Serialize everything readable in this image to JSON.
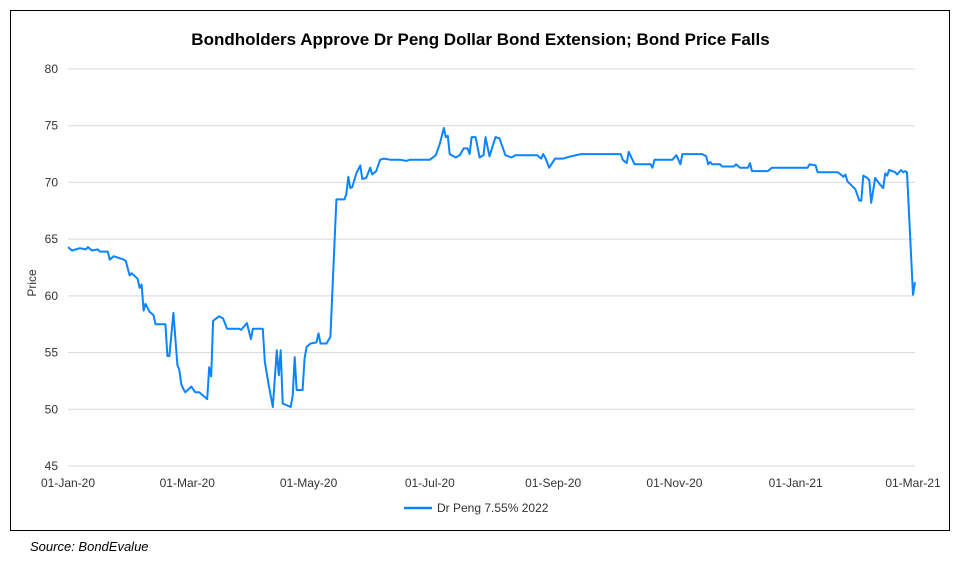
{
  "chart_data": {
    "type": "line",
    "title": "Bondholders Approve Dr Peng Dollar Bond Extension; Bond Price Falls",
    "xlabel": "",
    "ylabel": "Price",
    "x_unit": "days",
    "xlim": [
      0,
      426
    ],
    "ylim": [
      45,
      80
    ],
    "yticks": [
      45,
      50,
      55,
      60,
      65,
      70,
      75,
      80
    ],
    "xticks": [
      {
        "day": 0,
        "label": "01-Jan-20"
      },
      {
        "day": 60,
        "label": "01-Mar-20"
      },
      {
        "day": 121,
        "label": "01-May-20"
      },
      {
        "day": 182,
        "label": "01-Jul-20"
      },
      {
        "day": 244,
        "label": "01-Sep-20"
      },
      {
        "day": 305,
        "label": "01-Nov-20"
      },
      {
        "day": 366,
        "label": "01-Jan-21"
      },
      {
        "day": 425,
        "label": "01-Mar-21"
      }
    ],
    "grid": true,
    "legend": "bottom",
    "series": [
      {
        "name": "Dr Peng 7.55% 2022",
        "color": "#0a84ff",
        "points": [
          [
            0,
            64.3
          ],
          [
            2,
            64.0
          ],
          [
            6,
            64.2
          ],
          [
            9,
            64.1
          ],
          [
            10,
            64.3
          ],
          [
            12,
            64.0
          ],
          [
            15,
            64.1
          ],
          [
            16,
            63.9
          ],
          [
            20,
            63.9
          ],
          [
            21,
            63.2
          ],
          [
            23,
            63.5
          ],
          [
            28,
            63.2
          ],
          [
            29,
            63.1
          ],
          [
            31,
            61.8
          ],
          [
            32,
            62.0
          ],
          [
            35,
            61.5
          ],
          [
            36,
            60.7
          ],
          [
            37,
            61.0
          ],
          [
            38,
            58.7
          ],
          [
            39,
            59.3
          ],
          [
            41,
            58.6
          ],
          [
            43,
            58.3
          ],
          [
            44,
            57.5
          ],
          [
            49,
            57.5
          ],
          [
            50,
            54.7
          ],
          [
            51,
            54.7
          ],
          [
            53,
            58.5
          ],
          [
            55,
            53.9
          ],
          [
            56,
            53.5
          ],
          [
            57,
            52.2
          ],
          [
            58,
            51.8
          ],
          [
            59,
            51.5
          ],
          [
            62,
            52.0
          ],
          [
            64,
            51.5
          ],
          [
            66,
            51.5
          ],
          [
            70,
            50.9
          ],
          [
            71,
            53.7
          ],
          [
            72,
            52.9
          ],
          [
            73,
            57.8
          ],
          [
            76,
            58.2
          ],
          [
            78,
            58.0
          ],
          [
            80,
            57.1
          ],
          [
            86,
            57.1
          ],
          [
            87,
            57.0
          ],
          [
            90,
            57.6
          ],
          [
            92,
            56.2
          ],
          [
            93,
            57.1
          ],
          [
            98,
            57.1
          ],
          [
            99,
            54.2
          ],
          [
            101,
            52.1
          ],
          [
            103,
            50.2
          ],
          [
            105,
            55.2
          ],
          [
            106,
            53.0
          ],
          [
            107,
            55.2
          ],
          [
            108,
            50.5
          ],
          [
            112,
            50.2
          ],
          [
            113,
            51.2
          ],
          [
            114,
            54.6
          ],
          [
            115,
            51.7
          ],
          [
            118,
            51.7
          ],
          [
            119,
            54.5
          ],
          [
            120,
            55.5
          ],
          [
            122,
            55.8
          ],
          [
            125,
            55.9
          ],
          [
            126,
            56.7
          ],
          [
            127,
            55.8
          ],
          [
            130,
            55.8
          ],
          [
            132,
            56.4
          ],
          [
            135,
            68.5
          ],
          [
            139,
            68.5
          ],
          [
            140,
            69.0
          ],
          [
            141,
            70.5
          ],
          [
            142,
            69.5
          ],
          [
            143,
            69.6
          ],
          [
            145,
            70.8
          ],
          [
            147,
            71.5
          ],
          [
            148,
            70.3
          ],
          [
            150,
            70.4
          ],
          [
            152,
            71.3
          ],
          [
            153,
            70.7
          ],
          [
            155,
            71.0
          ],
          [
            157,
            72.0
          ],
          [
            159,
            72.1
          ],
          [
            162,
            72.0
          ],
          [
            167,
            72.0
          ],
          [
            170,
            71.9
          ],
          [
            172,
            72.0
          ],
          [
            177,
            72.0
          ],
          [
            182,
            72.0
          ],
          [
            185,
            72.4
          ],
          [
            187,
            73.4
          ],
          [
            189,
            74.8
          ],
          [
            190,
            74.0
          ],
          [
            191,
            74.1
          ],
          [
            192,
            72.5
          ],
          [
            195,
            72.2
          ],
          [
            197,
            72.4
          ],
          [
            199,
            73.0
          ],
          [
            201,
            73.0
          ],
          [
            202,
            72.5
          ],
          [
            203,
            74.0
          ],
          [
            205,
            74.0
          ],
          [
            207,
            72.2
          ],
          [
            209,
            72.4
          ],
          [
            210,
            74.0
          ],
          [
            212,
            72.3
          ],
          [
            215,
            74.0
          ],
          [
            217,
            73.9
          ],
          [
            220,
            72.4
          ],
          [
            223,
            72.2
          ],
          [
            225,
            72.4
          ],
          [
            236,
            72.4
          ],
          [
            238,
            72.1
          ],
          [
            239,
            72.5
          ],
          [
            240,
            72.2
          ],
          [
            242,
            71.3
          ],
          [
            245,
            72.1
          ],
          [
            249,
            72.1
          ],
          [
            253,
            72.3
          ],
          [
            258,
            72.5
          ],
          [
            278,
            72.5
          ],
          [
            279,
            72.0
          ],
          [
            281,
            71.7
          ],
          [
            282,
            72.7
          ],
          [
            285,
            71.6
          ],
          [
            293,
            71.6
          ],
          [
            294,
            71.3
          ],
          [
            295,
            72.0
          ],
          [
            304,
            72.0
          ],
          [
            306,
            72.4
          ],
          [
            308,
            71.6
          ],
          [
            309,
            72.5
          ],
          [
            319,
            72.5
          ],
          [
            321,
            72.3
          ],
          [
            322,
            71.6
          ],
          [
            323,
            71.8
          ],
          [
            324,
            71.6
          ],
          [
            328,
            71.6
          ],
          [
            329,
            71.4
          ],
          [
            335,
            71.4
          ],
          [
            336,
            71.6
          ],
          [
            338,
            71.3
          ],
          [
            342,
            71.3
          ],
          [
            343,
            71.7
          ],
          [
            344,
            71.0
          ],
          [
            352,
            71.0
          ],
          [
            354,
            71.3
          ],
          [
            372,
            71.3
          ],
          [
            373,
            71.6
          ],
          [
            376,
            71.5
          ],
          [
            377,
            70.9
          ],
          [
            387,
            70.9
          ],
          [
            388,
            70.8
          ],
          [
            390,
            70.5
          ],
          [
            391,
            70.7
          ],
          [
            392,
            70.1
          ],
          [
            396,
            69.4
          ],
          [
            398,
            68.4
          ],
          [
            399,
            68.4
          ],
          [
            400,
            70.6
          ],
          [
            402,
            70.4
          ],
          [
            403,
            70.2
          ],
          [
            404,
            68.2
          ],
          [
            406,
            70.4
          ],
          [
            408,
            69.9
          ],
          [
            410,
            69.5
          ],
          [
            411,
            70.8
          ],
          [
            412,
            70.6
          ],
          [
            413,
            71.1
          ],
          [
            416,
            70.9
          ],
          [
            417,
            70.7
          ],
          [
            419,
            71.1
          ],
          [
            420,
            70.9
          ],
          [
            421,
            71.0
          ],
          [
            422,
            70.9
          ],
          [
            425,
            60.1
          ],
          [
            426,
            61.2
          ]
        ]
      }
    ]
  },
  "source": "Source: BondEvalue"
}
